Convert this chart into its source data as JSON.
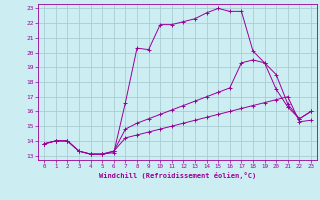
{
  "xlabel": "Windchill (Refroidissement éolien,°C)",
  "xlim": [
    -0.5,
    23.5
  ],
  "ylim": [
    12.7,
    23.3
  ],
  "yticks": [
    13,
    14,
    15,
    16,
    17,
    18,
    19,
    20,
    21,
    22,
    23
  ],
  "xticks": [
    0,
    1,
    2,
    3,
    4,
    5,
    6,
    7,
    8,
    9,
    10,
    11,
    12,
    13,
    14,
    15,
    16,
    17,
    18,
    19,
    20,
    21,
    22,
    23
  ],
  "bg_color": "#cceef2",
  "grid_color": "#aaccd4",
  "line_color": "#990099",
  "curve1_x": [
    0,
    1,
    2,
    3,
    4,
    5,
    6,
    7,
    8,
    9,
    10,
    11,
    12,
    13,
    14,
    15,
    16,
    17,
    18,
    19,
    20,
    21,
    22,
    23
  ],
  "curve1_y": [
    13.8,
    14.0,
    14.0,
    13.3,
    13.1,
    13.1,
    13.2,
    16.6,
    20.3,
    20.2,
    21.9,
    21.9,
    22.1,
    22.3,
    22.7,
    23.0,
    22.8,
    22.8,
    20.1,
    19.3,
    17.5,
    16.3,
    15.5,
    16.0
  ],
  "curve2_x": [
    0,
    1,
    2,
    3,
    4,
    5,
    6,
    7,
    8,
    9,
    10,
    11,
    12,
    13,
    14,
    15,
    16,
    17,
    18,
    19,
    20,
    21,
    22,
    23
  ],
  "curve2_y": [
    13.8,
    14.0,
    14.0,
    13.3,
    13.1,
    13.1,
    13.3,
    14.8,
    15.2,
    15.5,
    15.8,
    16.1,
    16.4,
    16.7,
    17.0,
    17.3,
    17.6,
    19.3,
    19.5,
    19.3,
    18.5,
    16.5,
    15.5,
    16.0
  ],
  "curve3_x": [
    0,
    1,
    2,
    3,
    4,
    5,
    6,
    7,
    8,
    9,
    10,
    11,
    12,
    13,
    14,
    15,
    16,
    17,
    18,
    19,
    20,
    21,
    22,
    23
  ],
  "curve3_y": [
    13.8,
    14.0,
    14.0,
    13.3,
    13.1,
    13.1,
    13.3,
    14.2,
    14.4,
    14.6,
    14.8,
    15.0,
    15.2,
    15.4,
    15.6,
    15.8,
    16.0,
    16.2,
    16.4,
    16.6,
    16.8,
    17.0,
    15.3,
    15.4
  ]
}
